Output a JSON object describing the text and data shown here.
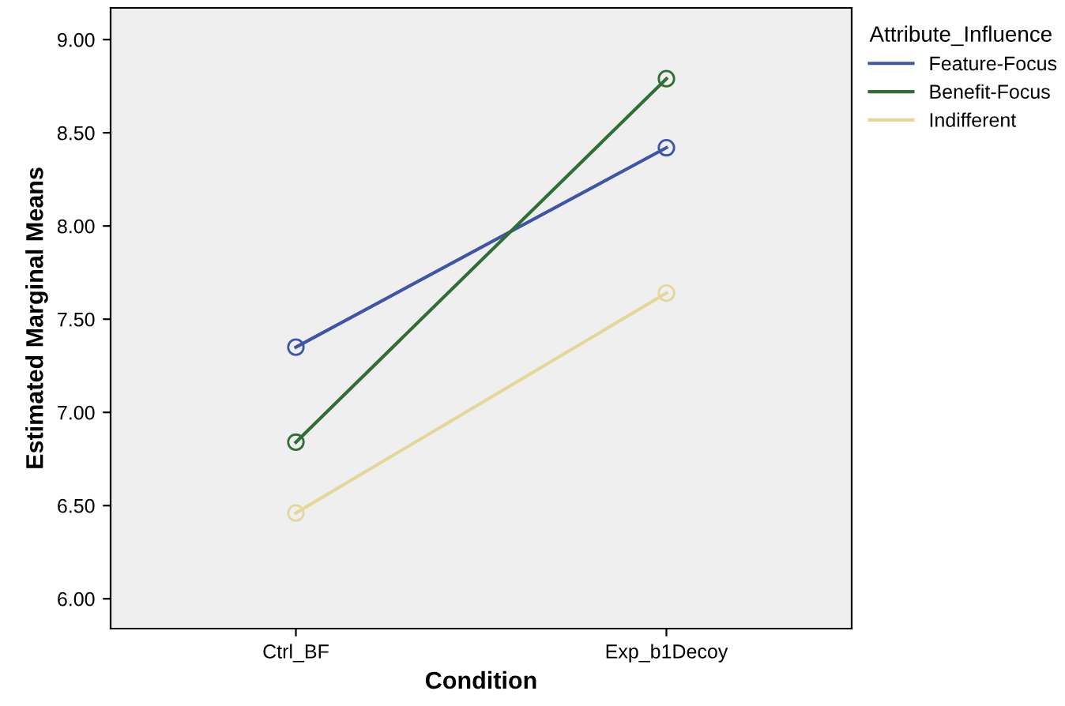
{
  "chart_data": {
    "type": "line",
    "xlabel": "Condition",
    "ylabel": "Estimated Marginal Means",
    "legend_title": "Attribute_Influence",
    "categories": [
      "Ctrl_BF",
      "Exp_b1Decoy"
    ],
    "series": [
      {
        "name": "Feature-Focus",
        "color": "#3f55a5",
        "values": [
          7.35,
          8.42
        ]
      },
      {
        "name": "Benefit-Focus",
        "color": "#2f6e35",
        "values": [
          6.84,
          8.79
        ]
      },
      {
        "name": "Indifferent",
        "color": "#e3d89a",
        "values": [
          6.46,
          7.64
        ]
      }
    ],
    "ylim": [
      5.84,
      9.17
    ],
    "yticks": [
      {
        "value": 6,
        "label": "6.00"
      },
      {
        "value": 6.5,
        "label": "6.50"
      },
      {
        "value": 7,
        "label": "7.00"
      },
      {
        "value": 7.5,
        "label": "7.50"
      },
      {
        "value": 8,
        "label": "8.00"
      },
      {
        "value": 8.5,
        "label": "8.50"
      },
      {
        "value": 9,
        "label": "9.00"
      }
    ],
    "marker": "circle",
    "line_style": "solid",
    "grid": false,
    "legend": "top right"
  }
}
